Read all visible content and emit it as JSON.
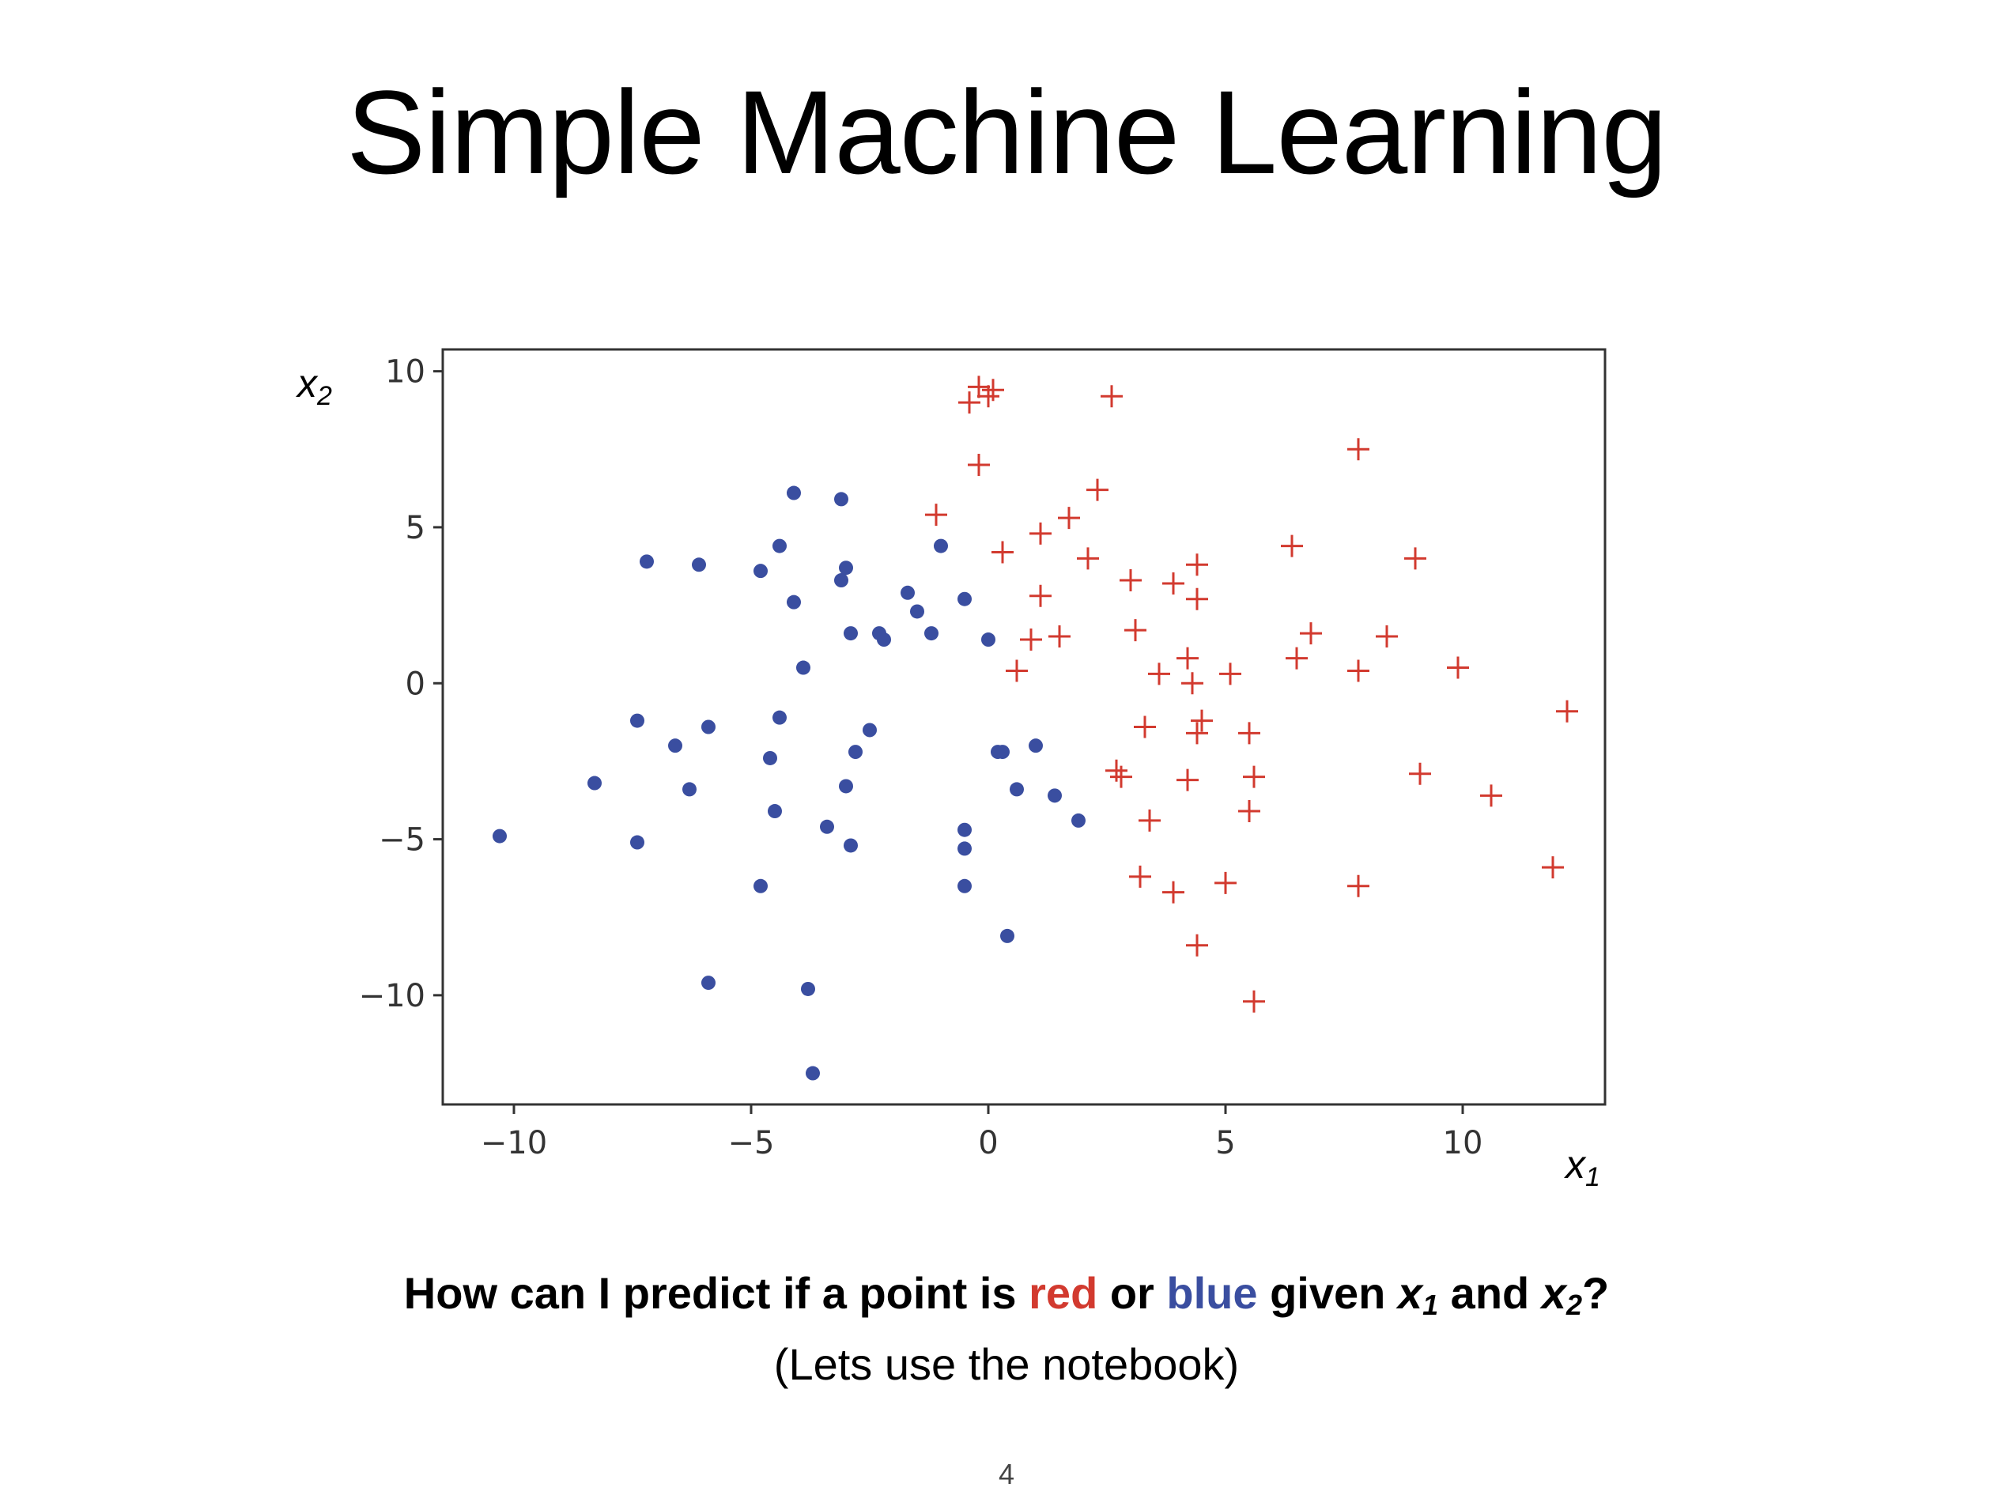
{
  "slide": {
    "title": "Simple Machine Learning",
    "question": {
      "prefix": "How can I predict if a point is ",
      "red_word": "red",
      "middle": " or ",
      "blue_word": "blue",
      "given": " given ",
      "x1_var": "x",
      "x1_sub": "1",
      "and": " and ",
      "x2_var": "x",
      "x2_sub": "2",
      "suffix": "?"
    },
    "subnote": "(Lets use the notebook)",
    "page_number": "4"
  },
  "colors": {
    "red": "#d23a2f",
    "blue": "#3a4ea0",
    "axes": "#333333"
  },
  "chart_data": {
    "type": "scatter",
    "xlabel": {
      "var": "x",
      "sub": "1"
    },
    "ylabel": {
      "var": "x",
      "sub": "2"
    },
    "xlim": [
      -11.5,
      13
    ],
    "ylim": [
      -13.5,
      10.7
    ],
    "xticks": [
      -10,
      -5,
      0,
      5,
      10
    ],
    "xtick_labels": [
      "−10",
      "−5",
      "0",
      "5",
      "10"
    ],
    "yticks": [
      10,
      5,
      0,
      -5,
      -10
    ],
    "ytick_labels": [
      "10",
      "5",
      "0",
      "−5",
      "−10"
    ],
    "grid": false,
    "series": [
      {
        "marker": "circle",
        "color": "#3a4ea0",
        "points": [
          [
            -10.3,
            -4.9
          ],
          [
            -8.3,
            -3.2
          ],
          [
            -7.4,
            -1.2
          ],
          [
            -7.4,
            -5.1
          ],
          [
            -7.2,
            3.9
          ],
          [
            -6.6,
            -2.0
          ],
          [
            -6.3,
            -3.4
          ],
          [
            -6.1,
            3.8
          ],
          [
            -5.9,
            -1.4
          ],
          [
            -5.9,
            -9.6
          ],
          [
            -4.8,
            3.6
          ],
          [
            -4.8,
            -6.5
          ],
          [
            -4.6,
            -2.4
          ],
          [
            -4.5,
            -4.1
          ],
          [
            -4.4,
            4.4
          ],
          [
            -4.4,
            -1.1
          ],
          [
            -4.1,
            6.1
          ],
          [
            -4.1,
            2.6
          ],
          [
            -3.9,
            0.5
          ],
          [
            -3.8,
            -9.8
          ],
          [
            -3.7,
            -12.5
          ],
          [
            -3.4,
            -4.6
          ],
          [
            -3.1,
            5.9
          ],
          [
            -3.1,
            3.3
          ],
          [
            -3.0,
            3.7
          ],
          [
            -3.0,
            -3.3
          ],
          [
            -2.9,
            -5.2
          ],
          [
            -2.9,
            1.6
          ],
          [
            -2.8,
            -2.2
          ],
          [
            -2.5,
            -1.5
          ],
          [
            -2.3,
            1.6
          ],
          [
            -2.2,
            1.4
          ],
          [
            -1.7,
            2.9
          ],
          [
            -1.5,
            2.3
          ],
          [
            -1.2,
            1.6
          ],
          [
            -1.0,
            4.4
          ],
          [
            -0.5,
            2.7
          ],
          [
            -0.5,
            -4.7
          ],
          [
            -0.5,
            -5.3
          ],
          [
            -0.5,
            -6.5
          ],
          [
            0.0,
            1.4
          ],
          [
            0.2,
            -2.2
          ],
          [
            0.3,
            -2.2
          ],
          [
            0.4,
            -8.1
          ],
          [
            0.6,
            -3.4
          ],
          [
            1.0,
            -2.0
          ],
          [
            1.4,
            -3.6
          ],
          [
            1.9,
            -4.4
          ]
        ]
      },
      {
        "marker": "plus",
        "color": "#d23a2f",
        "points": [
          [
            -0.4,
            9.0
          ],
          [
            -0.2,
            9.5
          ],
          [
            0.0,
            9.2
          ],
          [
            0.1,
            9.4
          ],
          [
            -0.2,
            7.0
          ],
          [
            2.6,
            9.2
          ],
          [
            -1.1,
            5.4
          ],
          [
            0.3,
            4.2
          ],
          [
            1.1,
            4.8
          ],
          [
            1.7,
            5.3
          ],
          [
            2.1,
            4.0
          ],
          [
            2.3,
            6.2
          ],
          [
            0.6,
            0.4
          ],
          [
            0.9,
            1.4
          ],
          [
            1.1,
            2.8
          ],
          [
            1.5,
            1.5
          ],
          [
            2.7,
            -2.8
          ],
          [
            2.8,
            -3.0
          ],
          [
            3.0,
            3.3
          ],
          [
            3.1,
            1.7
          ],
          [
            3.2,
            -6.2
          ],
          [
            3.3,
            -1.4
          ],
          [
            3.4,
            -4.4
          ],
          [
            3.6,
            0.3
          ],
          [
            3.9,
            3.2
          ],
          [
            3.9,
            -6.7
          ],
          [
            4.2,
            0.8
          ],
          [
            4.2,
            -3.1
          ],
          [
            4.3,
            0.0
          ],
          [
            4.4,
            3.8
          ],
          [
            4.4,
            2.7
          ],
          [
            4.4,
            -1.6
          ],
          [
            4.5,
            -1.2
          ],
          [
            4.4,
            -8.4
          ],
          [
            5.0,
            -6.4
          ],
          [
            5.1,
            0.3
          ],
          [
            5.5,
            -1.6
          ],
          [
            5.5,
            -4.1
          ],
          [
            5.6,
            -3.0
          ],
          [
            5.6,
            -10.2
          ],
          [
            6.4,
            4.4
          ],
          [
            6.5,
            0.8
          ],
          [
            6.8,
            1.6
          ],
          [
            7.8,
            7.5
          ],
          [
            7.8,
            0.4
          ],
          [
            7.8,
            -6.5
          ],
          [
            8.4,
            1.5
          ],
          [
            9.0,
            4.0
          ],
          [
            9.1,
            -2.9
          ],
          [
            9.9,
            0.5
          ],
          [
            10.6,
            -3.6
          ],
          [
            11.9,
            -5.9
          ],
          [
            12.2,
            -0.9
          ]
        ]
      }
    ]
  }
}
